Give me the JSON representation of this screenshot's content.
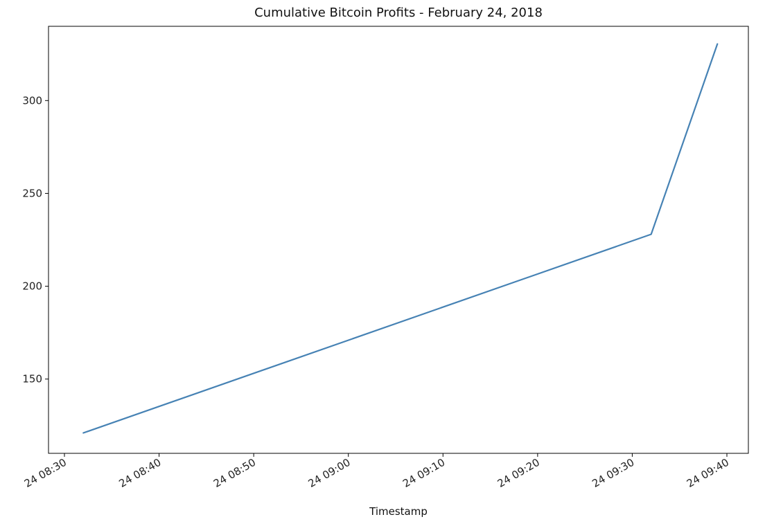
{
  "chart_data": {
    "type": "line",
    "title": "Cumulative Bitcoin Profits - February 24, 2018",
    "xlabel": "Timestamp",
    "ylabel": "",
    "x_ticks": [
      "24 08:30",
      "24 08:40",
      "24 08:50",
      "24 09:00",
      "24 09:10",
      "24 09:20",
      "24 09:30",
      "24 09:40"
    ],
    "y_ticks": [
      "150",
      "200",
      "250",
      "300"
    ],
    "xlim": [
      "2018-02-24 08:30",
      "2018-02-24 09:40"
    ],
    "ylim": [
      110,
      340
    ],
    "grid": false,
    "series": [
      {
        "color": "#4682b4",
        "x": [
          "2018-02-24 08:32",
          "2018-02-24 09:32",
          "2018-02-24 09:39"
        ],
        "y": [
          121,
          228,
          330.5
        ]
      }
    ]
  }
}
